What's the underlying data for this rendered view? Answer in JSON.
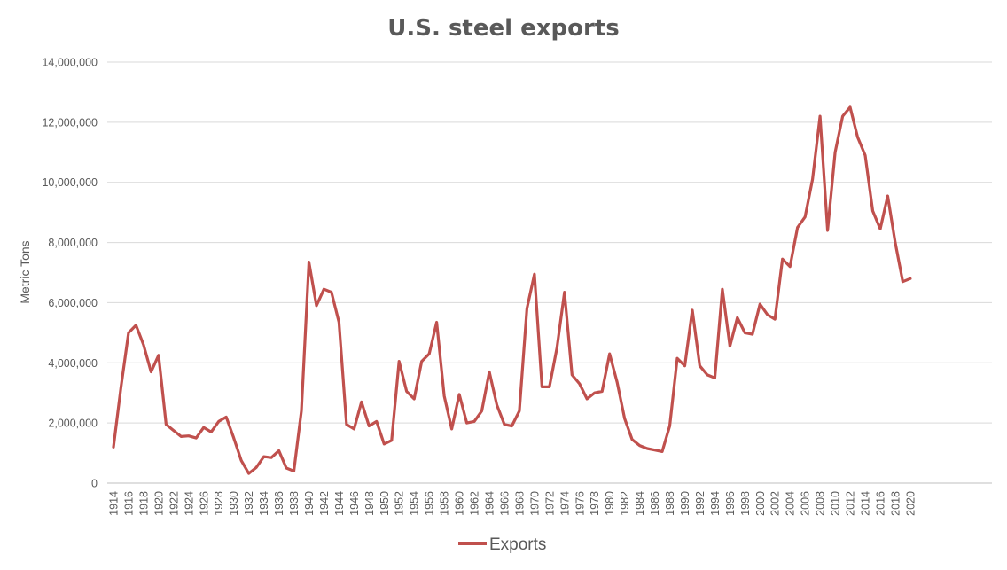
{
  "chart_data": {
    "type": "line",
    "title": "U.S. steel exports",
    "xlabel": "",
    "ylabel": "Metric Tons",
    "ylim": [
      0,
      14000000
    ],
    "yticks": [
      "0",
      "2,000,000",
      "4,000,000",
      "6,000,000",
      "8,000,000",
      "10,000,000",
      "12,000,000",
      "14,000,000"
    ],
    "xlim": [
      1914,
      2023
    ],
    "xtick_labels": [
      "1914",
      "1916",
      "1918",
      "1920",
      "1922",
      "1924",
      "1926",
      "1928",
      "1930",
      "1932",
      "1934",
      "1936",
      "1938",
      "1940",
      "1942",
      "1944",
      "1946",
      "1948",
      "1950",
      "1952",
      "1954",
      "1956",
      "1958",
      "1960",
      "1962",
      "1964",
      "1966",
      "1968",
      "1970",
      "1972",
      "1974",
      "1976",
      "1978",
      "1980",
      "1982",
      "1984",
      "1986",
      "1988",
      "1990",
      "1992",
      "1994",
      "1996",
      "1998",
      "2000",
      "2002",
      "2004",
      "2006",
      "2008",
      "2010",
      "2012",
      "2014",
      "2016",
      "2018",
      "2020"
    ],
    "grid": true,
    "legend_position": "bottom",
    "color": "#c0504d",
    "x": [
      1914,
      1915,
      1916,
      1917,
      1918,
      1919,
      1920,
      1921,
      1922,
      1923,
      1924,
      1925,
      1926,
      1927,
      1928,
      1929,
      1930,
      1931,
      1932,
      1933,
      1934,
      1935,
      1936,
      1937,
      1938,
      1939,
      1940,
      1941,
      1942,
      1943,
      1944,
      1945,
      1946,
      1947,
      1948,
      1949,
      1950,
      1951,
      1952,
      1953,
      1954,
      1955,
      1956,
      1957,
      1958,
      1959,
      1960,
      1961,
      1962,
      1963,
      1964,
      1965,
      1966,
      1967,
      1968,
      1969,
      1970,
      1971,
      1972,
      1973,
      1974,
      1975,
      1976,
      1977,
      1978,
      1979,
      1980,
      1981,
      1982,
      1983,
      1984,
      1985,
      1986,
      1987,
      1988,
      1989,
      1990,
      1991,
      1992,
      1993,
      1994,
      1995,
      1996,
      1997,
      1998,
      1999,
      2000,
      2001,
      2002,
      2003,
      2004,
      2005,
      2006,
      2007,
      2008,
      2009,
      2010,
      2011,
      2012,
      2013,
      2014,
      2015,
      2016,
      2017,
      2018,
      2019,
      2020
    ],
    "series": [
      {
        "name": "Exports",
        "values": [
          1200000,
          3200000,
          5000000,
          5250000,
          4600000,
          3700000,
          4250000,
          1950000,
          1750000,
          1550000,
          1570000,
          1500000,
          1850000,
          1700000,
          2050000,
          2200000,
          1500000,
          750000,
          320000,
          520000,
          880000,
          850000,
          1080000,
          500000,
          400000,
          2400000,
          7350000,
          5900000,
          6450000,
          6350000,
          5350000,
          1950000,
          1800000,
          2700000,
          1900000,
          2050000,
          1300000,
          1420000,
          4050000,
          3050000,
          2800000,
          4050000,
          4300000,
          5350000,
          2900000,
          1800000,
          2950000,
          2000000,
          2050000,
          2400000,
          3700000,
          2600000,
          1950000,
          1900000,
          2400000,
          5800000,
          6950000,
          3200000,
          3200000,
          4500000,
          6350000,
          3600000,
          3300000,
          2800000,
          3000000,
          3050000,
          4300000,
          3350000,
          2150000,
          1450000,
          1250000,
          1150000,
          1100000,
          1050000,
          1900000,
          4150000,
          3900000,
          5750000,
          3900000,
          3600000,
          3500000,
          6450000,
          4550000,
          5500000,
          5000000,
          4950000,
          5950000,
          5600000,
          5450000,
          7450000,
          7200000,
          8500000,
          8850000,
          10100000,
          12200000,
          8400000,
          11000000,
          12200000,
          12500000,
          11500000,
          10900000,
          9050000,
          8450000,
          9550000,
          8000000,
          6700000,
          6800000
        ]
      }
    ]
  }
}
